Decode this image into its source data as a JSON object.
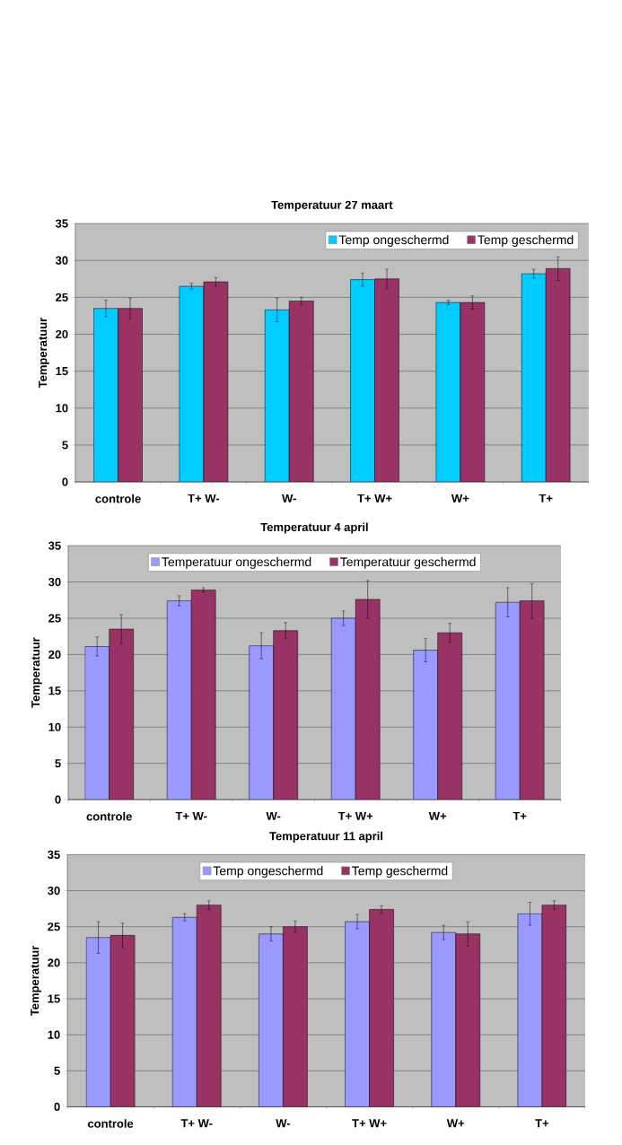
{
  "chart_data": [
    {
      "type": "bar",
      "title": "Temperatuur 27 maart",
      "ylabel": "Temperatuur",
      "categories": [
        "controle",
        "T+  W-",
        "W-",
        "T+  W+",
        "W+",
        "T+"
      ],
      "ylim": [
        0,
        35
      ],
      "yticks": [
        0,
        5,
        10,
        15,
        20,
        25,
        30,
        35
      ],
      "grid": "y",
      "legend": "top right",
      "series": [
        {
          "name": "Temp ongeschermd",
          "color": "#00ccff",
          "values": [
            23.5,
            26.5,
            23.3,
            27.4,
            24.3,
            28.2
          ],
          "errors": [
            1.1,
            0.4,
            1.6,
            0.9,
            0.3,
            0.6
          ]
        },
        {
          "name": "Temp geschermd",
          "color": "#993366",
          "values": [
            23.5,
            27.1,
            24.5,
            27.5,
            24.3,
            28.9
          ],
          "errors": [
            1.4,
            0.6,
            0.5,
            1.3,
            0.9,
            1.6
          ]
        }
      ]
    },
    {
      "type": "bar",
      "title": "Temperatuur 4 april",
      "ylabel": "Temperatuur",
      "categories": [
        "controle",
        "T+  W-",
        "W-",
        "T+  W+",
        "W+",
        "T+"
      ],
      "ylim": [
        0,
        35
      ],
      "yticks": [
        0,
        5,
        10,
        15,
        20,
        25,
        30,
        35
      ],
      "grid": "y",
      "legend": "top",
      "series": [
        {
          "name": "Temperatuur ongeschermd",
          "color": "#9999ff",
          "values": [
            21.1,
            27.4,
            21.2,
            25.0,
            20.6,
            27.2
          ],
          "errors": [
            1.3,
            0.7,
            1.8,
            1.0,
            1.6,
            2.0
          ]
        },
        {
          "name": "Temperatuur geschermd",
          "color": "#993366",
          "values": [
            23.5,
            28.9,
            23.3,
            27.6,
            23.0,
            27.4
          ],
          "errors": [
            2.0,
            0.3,
            1.1,
            2.6,
            1.3,
            2.4
          ]
        }
      ]
    },
    {
      "type": "bar",
      "title": "Temperatuur 11 april",
      "ylabel": "Temperatuur",
      "categories": [
        "controle",
        "T+  W-",
        "W-",
        "T+  W+",
        "W+",
        "T+"
      ],
      "ylim": [
        0,
        35
      ],
      "yticks": [
        0,
        5,
        10,
        15,
        20,
        25,
        30,
        35
      ],
      "grid": "y",
      "legend": "top",
      "series": [
        {
          "name": "Temp ongeschermd",
          "color": "#9999ff",
          "values": [
            23.5,
            26.3,
            24.0,
            25.7,
            24.2,
            26.8
          ],
          "errors": [
            2.2,
            0.5,
            1.0,
            1.0,
            1.0,
            1.6
          ]
        },
        {
          "name": "Temp geschermd",
          "color": "#993366",
          "values": [
            23.8,
            28.0,
            25.0,
            27.4,
            24.0,
            28.0
          ],
          "errors": [
            1.7,
            0.6,
            0.8,
            0.5,
            1.7,
            0.6
          ]
        }
      ]
    }
  ]
}
